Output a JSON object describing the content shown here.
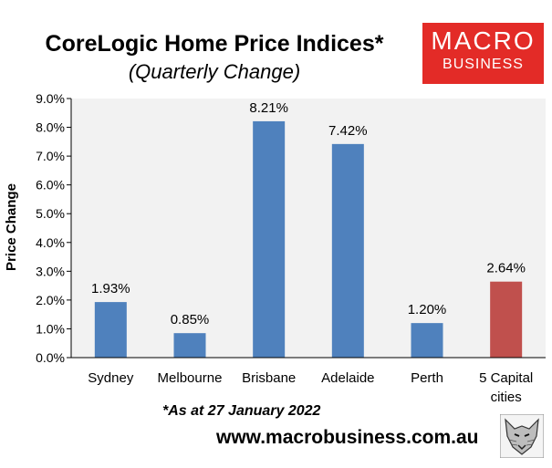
{
  "header": {
    "title": "CoreLogic Home Price Indices*",
    "subtitle": "(Quarterly Change)"
  },
  "logo": {
    "line1": "MACRO",
    "line2": "BUSINESS",
    "color": "#e32b27"
  },
  "footer": {
    "footnote": "*As at 27 January 2022",
    "website": "www.macrobusiness.com.au",
    "icon": "wolf-head-icon"
  },
  "chart_data": {
    "type": "bar",
    "title": "CoreLogic Home Price Indices*",
    "subtitle": "(Quarterly Change)",
    "xlabel": "",
    "ylabel": "Price Change",
    "categories": [
      [
        "Sydney"
      ],
      [
        "Melbourne"
      ],
      [
        "Brisbane"
      ],
      [
        "Adelaide"
      ],
      [
        "Perth"
      ],
      [
        "5 Capital",
        "cities"
      ]
    ],
    "values": [
      1.93,
      0.85,
      8.21,
      7.42,
      1.2,
      2.64
    ],
    "data_labels": [
      "1.93%",
      "0.85%",
      "8.21%",
      "7.42%",
      "1.20%",
      "2.64%"
    ],
    "bar_colors": [
      "#4f81bd",
      "#4f81bd",
      "#4f81bd",
      "#4f81bd",
      "#4f81bd",
      "#c0504d"
    ],
    "ylim": [
      0,
      9
    ],
    "yticks": [
      0,
      1,
      2,
      3,
      4,
      5,
      6,
      7,
      8,
      9
    ],
    "ytick_labels": [
      "0.0%",
      "1.0%",
      "2.0%",
      "3.0%",
      "4.0%",
      "5.0%",
      "6.0%",
      "7.0%",
      "8.0%",
      "9.0%"
    ],
    "grid": false,
    "legend": "none"
  }
}
